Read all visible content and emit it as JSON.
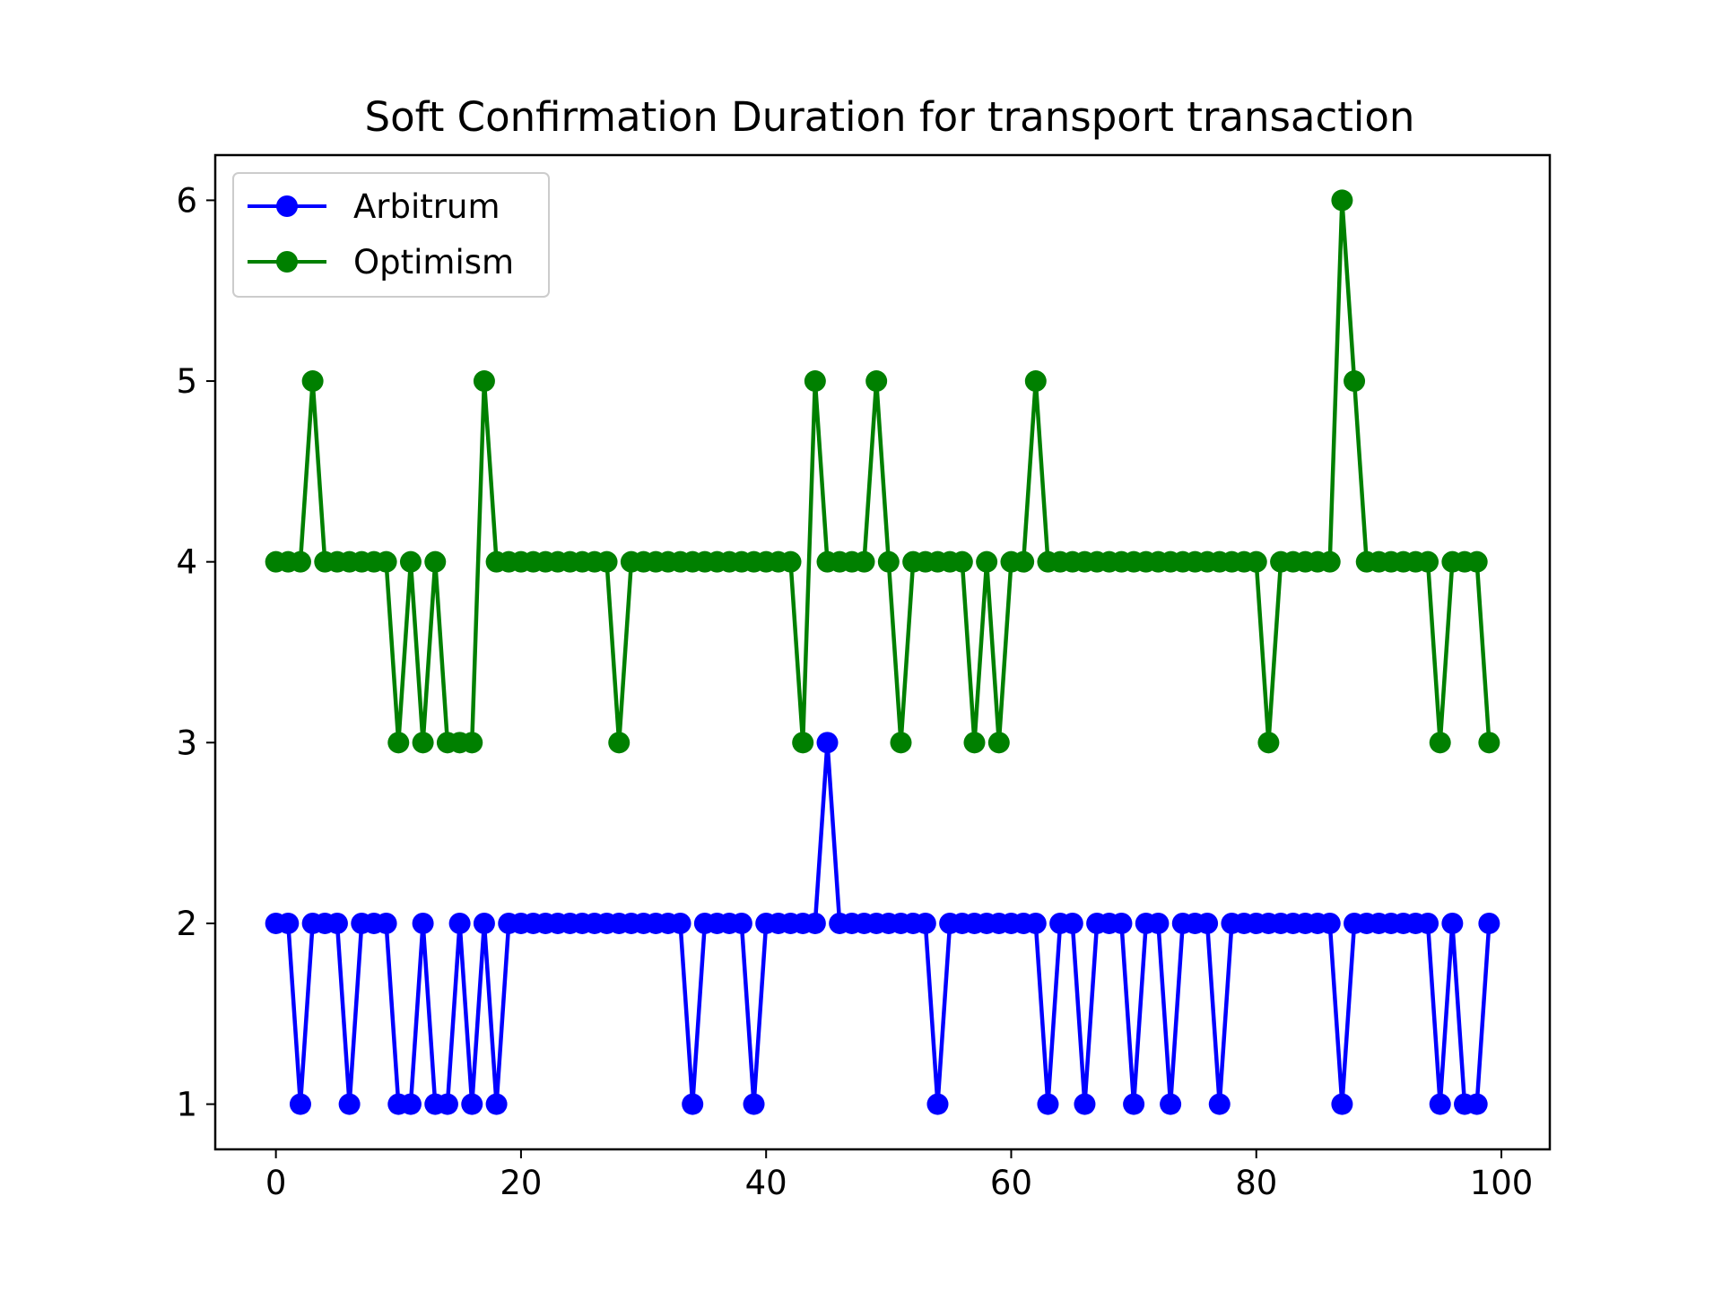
{
  "chart_data": {
    "type": "line",
    "title": "Soft Confirmation Duration for transport transaction",
    "xlabel": "",
    "ylabel": "",
    "xlim": [
      -4.95,
      103.95
    ],
    "ylim": [
      0.75,
      6.25
    ],
    "xticks": [
      0,
      20,
      40,
      60,
      80,
      100
    ],
    "yticks": [
      1,
      2,
      3,
      4,
      5,
      6
    ],
    "xtick_labels": [
      "0",
      "20",
      "40",
      "60",
      "80",
      "100"
    ],
    "ytick_labels": [
      "1",
      "2",
      "3",
      "4",
      "5",
      "6"
    ],
    "grid": false,
    "legend": "upper-left",
    "x": [
      0,
      1,
      2,
      3,
      4,
      5,
      6,
      7,
      8,
      9,
      10,
      11,
      12,
      13,
      14,
      15,
      16,
      17,
      18,
      19,
      20,
      21,
      22,
      23,
      24,
      25,
      26,
      27,
      28,
      29,
      30,
      31,
      32,
      33,
      34,
      35,
      36,
      37,
      38,
      39,
      40,
      41,
      42,
      43,
      44,
      45,
      46,
      47,
      48,
      49,
      50,
      51,
      52,
      53,
      54,
      55,
      56,
      57,
      58,
      59,
      60,
      61,
      62,
      63,
      64,
      65,
      66,
      67,
      68,
      69,
      70,
      71,
      72,
      73,
      74,
      75,
      76,
      77,
      78,
      79,
      80,
      81,
      82,
      83,
      84,
      85,
      86,
      87,
      88,
      89,
      90,
      91,
      92,
      93,
      94,
      95,
      96,
      97,
      98,
      99
    ],
    "series": [
      {
        "name": "Arbitrum",
        "color": "#0000ff",
        "marker": "circle",
        "values": [
          2,
          2,
          1,
          2,
          2,
          2,
          1,
          2,
          2,
          2,
          1,
          1,
          2,
          1,
          1,
          2,
          1,
          2,
          1,
          2,
          2,
          2,
          2,
          2,
          2,
          2,
          2,
          2,
          2,
          2,
          2,
          2,
          2,
          2,
          1,
          2,
          2,
          2,
          2,
          1,
          2,
          2,
          2,
          2,
          2,
          3,
          2,
          2,
          2,
          2,
          2,
          2,
          2,
          2,
          1,
          2,
          2,
          2,
          2,
          2,
          2,
          2,
          2,
          1,
          2,
          2,
          1,
          2,
          2,
          2,
          1,
          2,
          2,
          1,
          2,
          2,
          2,
          1,
          2,
          2,
          2,
          2,
          2,
          2,
          2,
          2,
          2,
          1,
          2,
          2,
          2,
          2,
          2,
          2,
          2,
          1,
          2,
          1,
          1,
          2
        ]
      },
      {
        "name": "Optimism",
        "color": "#008000",
        "marker": "circle",
        "values": [
          4,
          4,
          4,
          5,
          4,
          4,
          4,
          4,
          4,
          4,
          3,
          4,
          3,
          4,
          3,
          3,
          3,
          5,
          4,
          4,
          4,
          4,
          4,
          4,
          4,
          4,
          4,
          4,
          3,
          4,
          4,
          4,
          4,
          4,
          4,
          4,
          4,
          4,
          4,
          4,
          4,
          4,
          4,
          3,
          5,
          4,
          4,
          4,
          4,
          5,
          4,
          3,
          4,
          4,
          4,
          4,
          4,
          3,
          4,
          3,
          4,
          4,
          5,
          4,
          4,
          4,
          4,
          4,
          4,
          4,
          4,
          4,
          4,
          4,
          4,
          4,
          4,
          4,
          4,
          4,
          4,
          3,
          4,
          4,
          4,
          4,
          4,
          6,
          5,
          4,
          4,
          4,
          4,
          4,
          4,
          3,
          4,
          4,
          4,
          3
        ]
      }
    ]
  }
}
